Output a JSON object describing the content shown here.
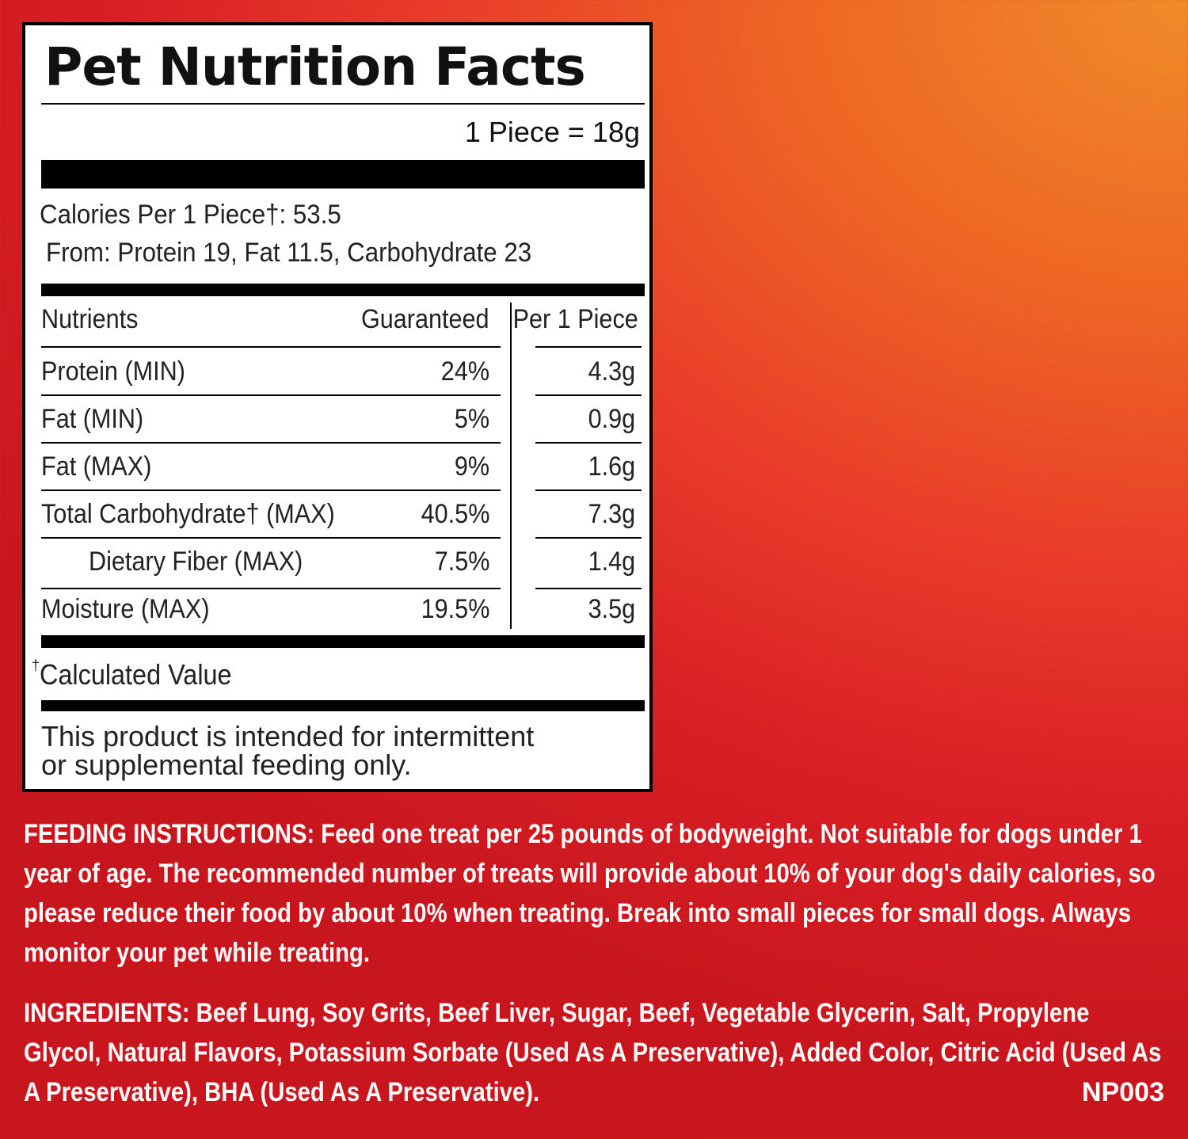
{
  "label": {
    "title": "Pet Nutrition Facts",
    "serving_size": "1 Piece = 18g",
    "calories_line": "Calories Per 1 Piece†: 53.5",
    "calories_from": "From: Protein 19, Fat 11.5, Carbohydrate 23",
    "headers": {
      "nutrients": "Nutrients",
      "guaranteed": "Guaranteed",
      "per_piece": "Per 1 Piece"
    },
    "rows": [
      {
        "name": "Protein (MIN)",
        "guaranteed": "24%",
        "per_piece": "4.3g"
      },
      {
        "name": "Fat (MIN)",
        "guaranteed": "5%",
        "per_piece": "0.9g"
      },
      {
        "name": "Fat (MAX)",
        "guaranteed": "9%",
        "per_piece": "1.6g"
      },
      {
        "name": "Total Carbohydrate†  (MAX)",
        "guaranteed": "40.5%",
        "per_piece": "7.3g"
      },
      {
        "name": "Dietary Fiber (MAX)",
        "guaranteed": "7.5%",
        "per_piece": "1.4g"
      },
      {
        "name": "Moisture (MAX)",
        "guaranteed": "19.5%",
        "per_piece": "3.5g"
      }
    ],
    "footnote_mark": "†",
    "footnote": "Calculated Value",
    "disclaimer_line1": "This product is intended for intermittent",
    "disclaimer_line2": "or supplemental feeding only."
  },
  "feeding_instructions": "FEEDING INSTRUCTIONS: Feed one treat per 25 pounds of bodyweight. Not suitable for dogs under 1 year of age. The recommended number of treats will provide about 10% of your dog's daily calories, so please reduce their food by about 10% when treating. Break into small pieces for small dogs. Always monitor your pet while treating.",
  "ingredients": "INGREDIENTS: Beef Lung, Soy Grits, Beef Liver, Sugar, Beef, Vegetable Glycerin, Salt, Propylene Glycol, Natural Flavors, Potassium Sorbate (Used As A Preservative), Added Color, Citric Acid (Used As A Preservative), BHA (Used As A Preservative).",
  "product_code": "NP003",
  "colors": {
    "background_orange": "#f08a2a",
    "background_red": "#d81f24",
    "text_white": "#ffffff"
  }
}
